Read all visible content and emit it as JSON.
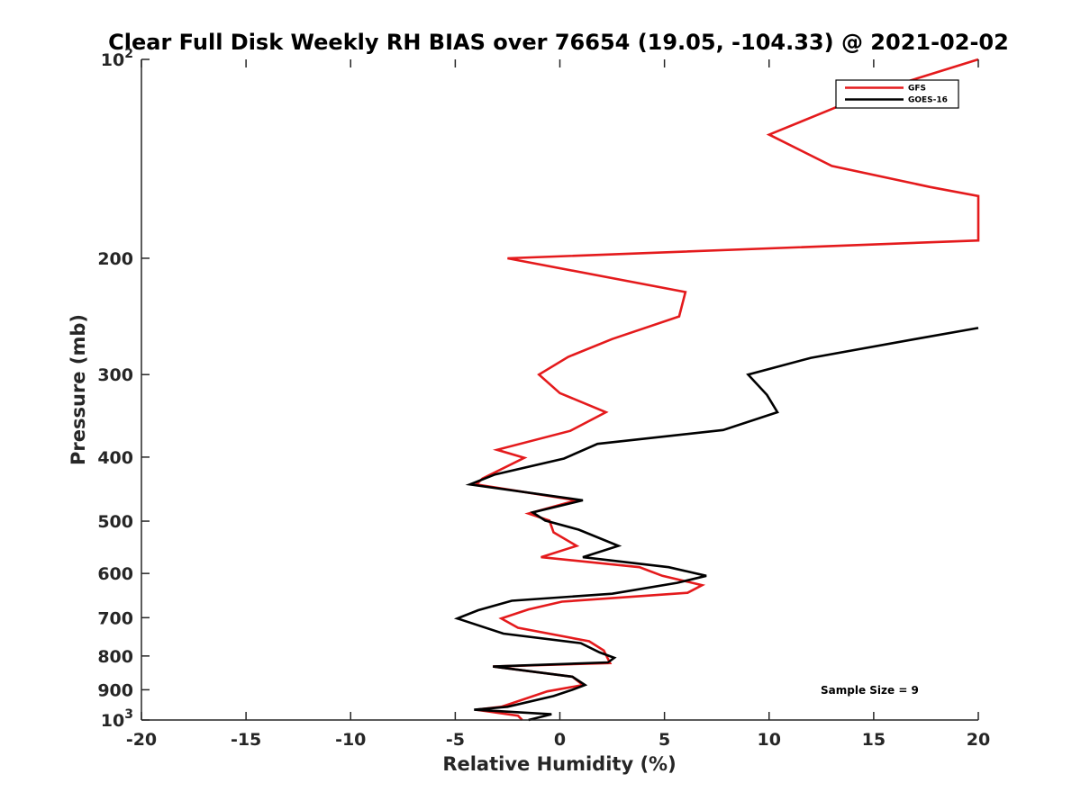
{
  "chart_data": {
    "type": "line",
    "title": "Clear Full Disk Weekly RH BIAS over 76654 (19.05, -104.33) @ 2021-02-02",
    "xlabel": "Relative Humidity (%)",
    "ylabel": "Pressure (mb)",
    "xlim": [
      -20,
      20
    ],
    "ylim": [
      100,
      1000
    ],
    "y_scale": "log",
    "y_reversed": true,
    "grid": false,
    "legend_position": "top-right",
    "x_ticks": [
      "-20",
      "-15",
      "-10",
      "-5",
      "0",
      "5",
      "10",
      "15",
      "20"
    ],
    "y_ticks": [
      {
        "value": 100,
        "base": "10",
        "exp": "2"
      },
      {
        "value": 200,
        "label": "200"
      },
      {
        "value": 300,
        "label": "300"
      },
      {
        "value": 400,
        "label": "400"
      },
      {
        "value": 500,
        "label": "500"
      },
      {
        "value": 600,
        "label": "600"
      },
      {
        "value": 700,
        "label": "700"
      },
      {
        "value": 800,
        "label": "800"
      },
      {
        "value": 900,
        "label": "900"
      },
      {
        "value": 1000,
        "base": "10",
        "exp": "3"
      }
    ],
    "annotation": "Sample Size = 9",
    "series": [
      {
        "name": "GFS",
        "color": "#e41a1c",
        "points": [
          {
            "x": 20.0,
            "p": 100
          },
          {
            "x": 15.0,
            "p": 112
          },
          {
            "x": 10.0,
            "p": 130
          },
          {
            "x": 13.0,
            "p": 145
          },
          {
            "x": 17.7,
            "p": 156
          },
          {
            "x": 20.0,
            "p": 161
          },
          {
            "x": 20.0,
            "p": 188
          },
          {
            "x": -2.5,
            "p": 200
          },
          {
            "x": 6.0,
            "p": 225
          },
          {
            "x": 5.7,
            "p": 245
          },
          {
            "x": 2.5,
            "p": 265
          },
          {
            "x": 0.4,
            "p": 282
          },
          {
            "x": -1.0,
            "p": 300
          },
          {
            "x": 0.0,
            "p": 320
          },
          {
            "x": 2.2,
            "p": 342
          },
          {
            "x": 0.5,
            "p": 365
          },
          {
            "x": -3.0,
            "p": 390
          },
          {
            "x": -1.7,
            "p": 401
          },
          {
            "x": -3.7,
            "p": 431
          },
          {
            "x": -4.0,
            "p": 440
          },
          {
            "x": 0.8,
            "p": 465
          },
          {
            "x": -1.5,
            "p": 487
          },
          {
            "x": -0.5,
            "p": 499
          },
          {
            "x": -0.3,
            "p": 520
          },
          {
            "x": 0.8,
            "p": 545
          },
          {
            "x": -0.9,
            "p": 567
          },
          {
            "x": 3.8,
            "p": 587
          },
          {
            "x": 4.9,
            "p": 605
          },
          {
            "x": 6.8,
            "p": 625
          },
          {
            "x": 6.1,
            "p": 642
          },
          {
            "x": 0.1,
            "p": 662
          },
          {
            "x": -1.5,
            "p": 680
          },
          {
            "x": -2.8,
            "p": 702
          },
          {
            "x": -2.0,
            "p": 725
          },
          {
            "x": 1.4,
            "p": 760
          },
          {
            "x": 2.1,
            "p": 785
          },
          {
            "x": 2.4,
            "p": 820
          },
          {
            "x": -3.2,
            "p": 830
          },
          {
            "x": 0.6,
            "p": 860
          },
          {
            "x": 1.1,
            "p": 885
          },
          {
            "x": -0.6,
            "p": 905
          },
          {
            "x": -2.8,
            "p": 955
          },
          {
            "x": -4.0,
            "p": 965
          },
          {
            "x": -2.0,
            "p": 985
          },
          {
            "x": -1.8,
            "p": 1000
          }
        ]
      },
      {
        "name": "GOES-16",
        "color": "#000000",
        "points": [
          {
            "x": 20.0,
            "p": 255
          },
          {
            "x": 17.0,
            "p": 265
          },
          {
            "x": 12.0,
            "p": 283
          },
          {
            "x": 9.0,
            "p": 300
          },
          {
            "x": 9.9,
            "p": 322
          },
          {
            "x": 10.4,
            "p": 342
          },
          {
            "x": 7.8,
            "p": 364
          },
          {
            "x": 1.8,
            "p": 382
          },
          {
            "x": 0.2,
            "p": 402
          },
          {
            "x": -3.1,
            "p": 425
          },
          {
            "x": -4.3,
            "p": 440
          },
          {
            "x": 1.1,
            "p": 465
          },
          {
            "x": -1.3,
            "p": 485
          },
          {
            "x": -0.7,
            "p": 499
          },
          {
            "x": 0.9,
            "p": 515
          },
          {
            "x": 2.8,
            "p": 545
          },
          {
            "x": 1.1,
            "p": 567
          },
          {
            "x": 5.2,
            "p": 587
          },
          {
            "x": 7.0,
            "p": 605
          },
          {
            "x": 5.6,
            "p": 620
          },
          {
            "x": 2.5,
            "p": 644
          },
          {
            "x": -2.3,
            "p": 660
          },
          {
            "x": -3.9,
            "p": 682
          },
          {
            "x": -4.9,
            "p": 702
          },
          {
            "x": -2.7,
            "p": 740
          },
          {
            "x": 1.0,
            "p": 765
          },
          {
            "x": 1.9,
            "p": 790
          },
          {
            "x": 2.6,
            "p": 805
          },
          {
            "x": 2.3,
            "p": 818
          },
          {
            "x": -3.2,
            "p": 830
          },
          {
            "x": 0.6,
            "p": 860
          },
          {
            "x": 1.2,
            "p": 885
          },
          {
            "x": 0.6,
            "p": 900
          },
          {
            "x": -0.3,
            "p": 920
          },
          {
            "x": -2.5,
            "p": 955
          },
          {
            "x": -4.1,
            "p": 965
          },
          {
            "x": -0.4,
            "p": 980
          },
          {
            "x": -1.5,
            "p": 1000
          }
        ]
      }
    ]
  }
}
